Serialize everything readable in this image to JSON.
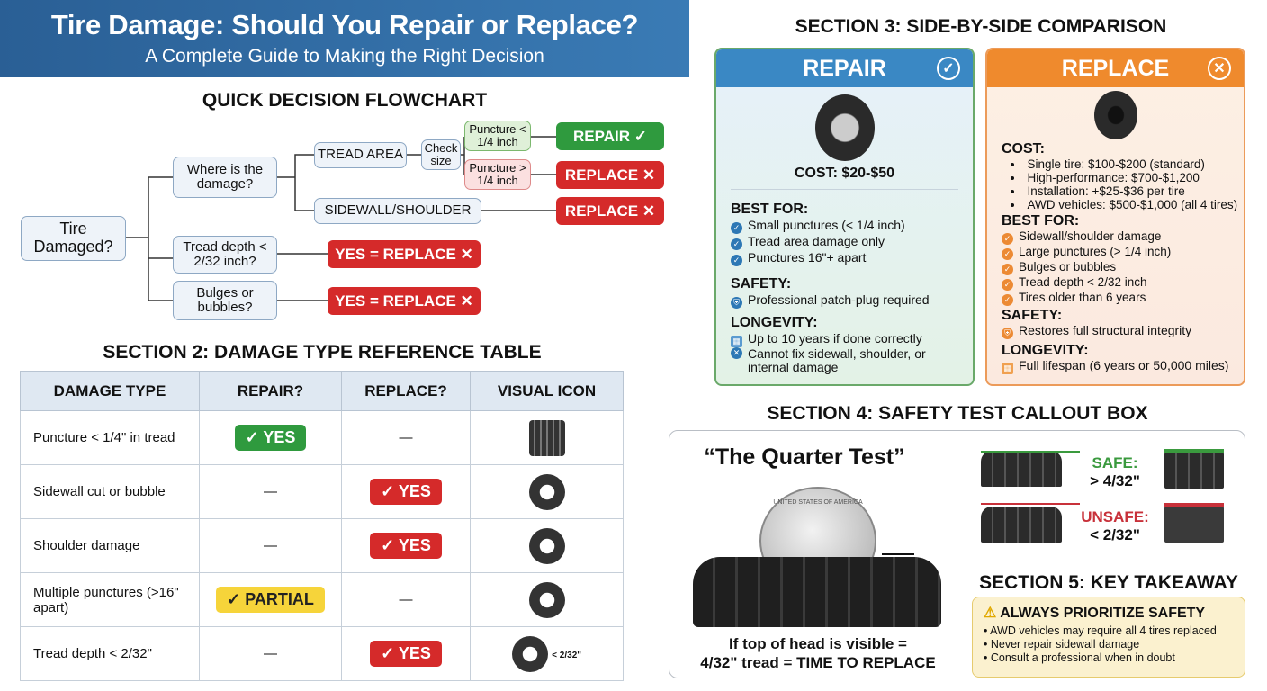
{
  "header": {
    "title": "Tire Damage: Should You Repair or Replace?",
    "subtitle": "A Complete Guide to Making the Right Decision"
  },
  "flowchart": {
    "title": "QUICK DECISION FLOWCHART",
    "start": "Tire Damaged?",
    "where": "Where is the damage?",
    "tread_area": "TREAD AREA",
    "check_size": "Check size",
    "small": "Puncture < 1/4 inch",
    "large": "Puncture > 1/4 inch",
    "sidewall": "SIDEWALL/SHOULDER",
    "tread_depth": "Tread depth < 2/32 inch?",
    "bulges": "Bulges or bubbles?",
    "repair": "REPAIR ✓",
    "replace": "REPLACE ✕",
    "yes_replace": "YES = REPLACE ✕"
  },
  "table": {
    "title": "SECTION 2: DAMAGE TYPE REFERENCE TABLE",
    "headers": [
      "DAMAGE TYPE",
      "REPAIR?",
      "REPLACE?",
      "VISUAL ICON"
    ],
    "rows": [
      {
        "type": "Puncture < 1/4\" in tread",
        "repair": "✓ YES",
        "replace": "—",
        "icon": "tread-nail"
      },
      {
        "type": "Sidewall cut or bubble",
        "repair": "—",
        "replace": "✓ YES",
        "icon": "tire-bubble"
      },
      {
        "type": "Shoulder damage",
        "repair": "—",
        "replace": "✓ YES",
        "icon": "tire-shoulder"
      },
      {
        "type": "Multiple punctures (>16\" apart)",
        "repair": "✓ PARTIAL",
        "replace": "—",
        "icon": "tire-punctures"
      },
      {
        "type": "Tread depth < 2/32\"",
        "repair": "—",
        "replace": "✓ YES",
        "icon": "tire-gauge",
        "icon_label": "< 2/32\""
      }
    ]
  },
  "comparison": {
    "title": "SECTION 3: SIDE-BY-SIDE COMPARISON",
    "repair": {
      "label": "REPAIR",
      "color": "#2f9a3e",
      "cost": "COST: $20-$50",
      "best_for_label": "BEST FOR:",
      "best_for": [
        "Small punctures (< 1/4 inch)",
        "Tread area damage only",
        "Punctures 16\"+ apart"
      ],
      "safety_label": "SAFETY:",
      "safety": "Professional patch-plug required",
      "longevity_label": "LONGEVITY:",
      "longevity": [
        "Up to 10 years if done correctly",
        "Cannot fix sidewall, shoulder, or internal damage"
      ]
    },
    "replace": {
      "label": "REPLACE",
      "color": "#ec7a1f",
      "cost_label": "COST:",
      "cost": [
        "Single tire: $100-$200 (standard)",
        "High-performance: $700-$1,200",
        "Installation: +$25-$36 per tire",
        "AWD vehicles: $500-$1,000 (all 4 tires)"
      ],
      "best_for_label": "BEST FOR:",
      "best_for": [
        "Sidewall/shoulder damage",
        "Large punctures (> 1/4 inch)",
        "Bulges or bubbles",
        "Tread depth < 2/32 inch",
        "Tires older than 6 years"
      ],
      "safety_label": "SAFETY:",
      "safety": "Restores full structural integrity",
      "longevity_label": "LONGEVITY:",
      "longevity": "Full lifespan (6 years or 50,000 miles)"
    }
  },
  "safety_test": {
    "title": "SECTION 4: SAFETY TEST CALLOUT BOX",
    "name": "“The Quarter Test”",
    "coin_text": "UNITED STATES OF AMERICA",
    "caption1": "If top of head is visible =",
    "caption2": "4/32\" tread = TIME TO REPLACE",
    "safe_label": "SAFE:",
    "safe_value": "> 4/32\"",
    "unsafe_label": "UNSAFE:",
    "unsafe_value": "< 2/32\""
  },
  "takeaway": {
    "title": "SECTION 5: KEY TAKEAWAY",
    "heading": "ALWAYS PRIORITIZE SAFETY",
    "items": [
      "AWD vehicles may require all 4 tires replaced",
      "Never repair sidewall damage",
      "Consult a professional when in doubt"
    ]
  }
}
